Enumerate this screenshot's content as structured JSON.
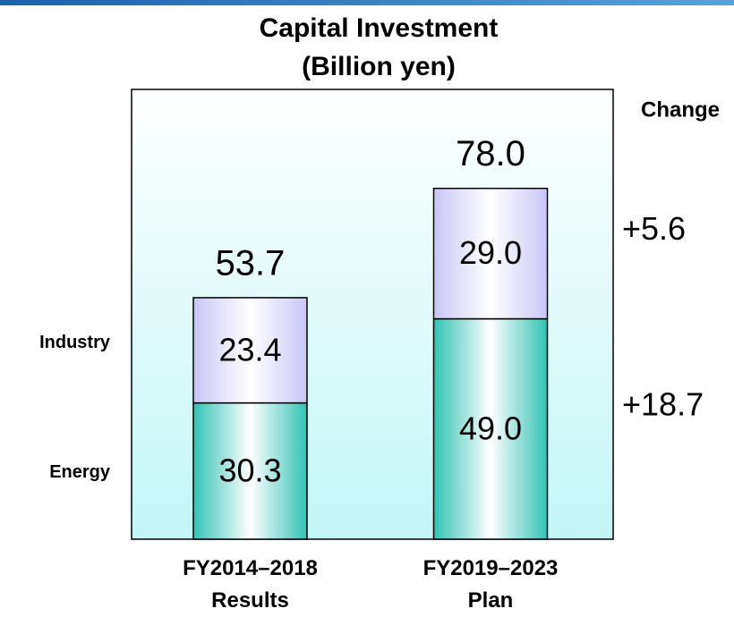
{
  "chart_data": {
    "type": "stacked_bar",
    "title": "Capital Investment",
    "subtitle": "(Billion yen)",
    "categories": [
      "FY2014–2018 Results",
      "FY2019–2023 Plan"
    ],
    "series": [
      {
        "name": "Energy",
        "color": "#33c2b4",
        "values": [
          30.3,
          49.0
        ],
        "value_labels": [
          "30.3",
          "49.0"
        ],
        "change": 18.7,
        "change_label": "+18.7"
      },
      {
        "name": "Industry",
        "color": "#c9c6f5",
        "values": [
          23.4,
          29.0
        ],
        "value_labels": [
          "23.4",
          "29.0"
        ],
        "change": 5.6,
        "change_label": "+5.6"
      }
    ],
    "totals": [
      53.7,
      78.0
    ],
    "total_labels": [
      "53.7",
      "78.0"
    ],
    "change_title": "Change",
    "ylim": [
      0,
      100
    ]
  }
}
